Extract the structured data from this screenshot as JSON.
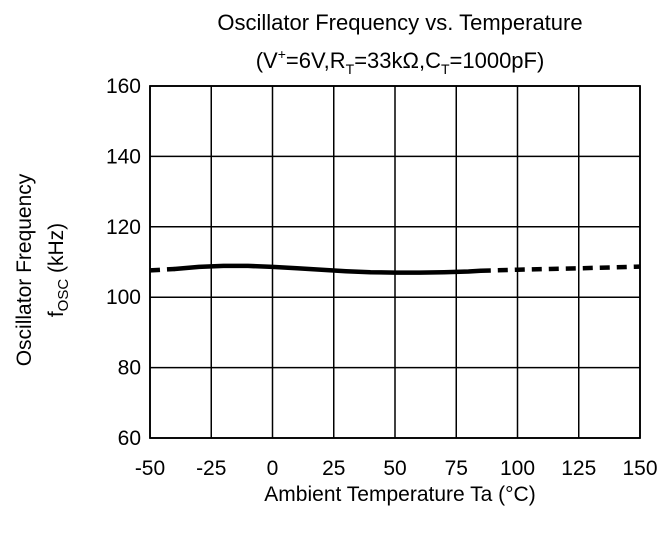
{
  "chart_data": {
    "type": "line",
    "title": "Oscillator Frequency vs. Temperature",
    "subtitle": {
      "prefix": "(V",
      "v_sup": "+",
      "part1": "=6V,R",
      "rt_sub": "T",
      "part2": "=33kΩ,C",
      "ct_sub": "T",
      "part3": "=1000pF)"
    },
    "xlabel": "Ambient Temperature  Ta  (°C)",
    "ylabel": {
      "line1": "Oscillator Frequency",
      "f": "f",
      "osc_sub": "OSC",
      "unit": "  (kHz)"
    },
    "xlim": [
      -50,
      150
    ],
    "ylim": [
      60,
      160
    ],
    "xticks": [
      -50,
      -25,
      0,
      25,
      50,
      75,
      100,
      125,
      150
    ],
    "yticks": [
      60,
      80,
      100,
      120,
      140,
      160
    ],
    "grid": true,
    "series": [
      {
        "style": "dotted",
        "x": [
          -50,
          -40
        ],
        "y": [
          107.6,
          108.0
        ]
      },
      {
        "style": "solid",
        "x": [
          -40,
          -30,
          -20,
          -10,
          0,
          10,
          20,
          30,
          40,
          50,
          60,
          70,
          80,
          85
        ],
        "y": [
          108.0,
          108.6,
          108.9,
          108.9,
          108.6,
          108.2,
          107.8,
          107.4,
          107.1,
          107.0,
          107.0,
          107.1,
          107.3,
          107.5
        ]
      },
      {
        "style": "dotted",
        "x": [
          85,
          100,
          125,
          150
        ],
        "y": [
          107.5,
          107.8,
          108.2,
          108.7
        ]
      }
    ]
  }
}
